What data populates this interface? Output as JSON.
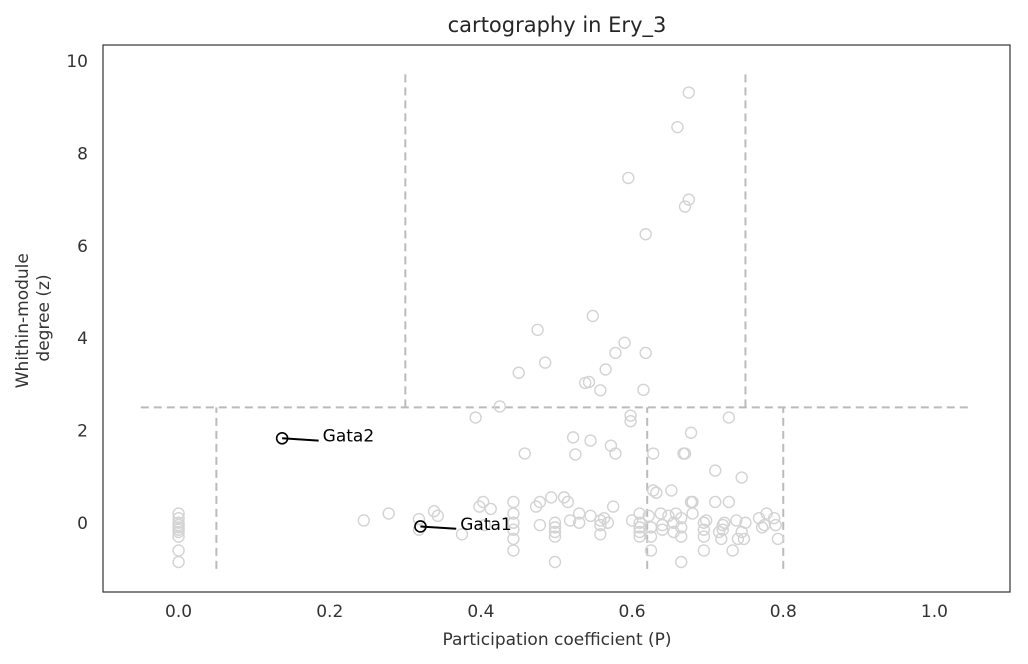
{
  "chart_data": {
    "type": "scatter",
    "title": "cartography in Ery_3",
    "xlabel": "Participation coefficient (P)",
    "ylabel_lines": [
      "Whithin-module",
      "degree (z)"
    ],
    "xlim": [
      -0.1,
      1.1
    ],
    "ylim": [
      -1.5,
      10.35
    ],
    "xticks": [
      0.0,
      0.2,
      0.4,
      0.6,
      0.8,
      1.0
    ],
    "xtick_labels": [
      "0.0",
      "0.2",
      "0.4",
      "0.6",
      "0.8",
      "1.0"
    ],
    "yticks": [
      0,
      2,
      4,
      6,
      8,
      10
    ],
    "ytick_labels": [
      "0",
      "2",
      "4",
      "6",
      "8",
      "10"
    ],
    "grid": false,
    "colors": {
      "points": "#d3d3d3",
      "highlight": "#000000",
      "boundaries": "#bbbbbb",
      "frame": "#333333"
    },
    "boundaries": [
      {
        "kind": "h",
        "y": 2.5,
        "x0": -0.05,
        "x1": 1.05
      },
      {
        "kind": "v",
        "x": 0.05,
        "y0": -1.0,
        "y1": 2.5
      },
      {
        "kind": "v",
        "x": 0.62,
        "y0": -1.0,
        "y1": 2.5
      },
      {
        "kind": "v",
        "x": 0.8,
        "y0": -1.0,
        "y1": 2.5
      },
      {
        "kind": "v",
        "x": 0.3,
        "y0": 2.5,
        "y1": 9.8
      },
      {
        "kind": "v",
        "x": 0.75,
        "y0": 2.5,
        "y1": 9.8
      }
    ],
    "points": [
      [
        0.0,
        0.2
      ],
      [
        0.0,
        0.1
      ],
      [
        0.0,
        0.0
      ],
      [
        0.0,
        -0.05
      ],
      [
        0.0,
        -0.1
      ],
      [
        0.0,
        -0.15
      ],
      [
        0.0,
        -0.2
      ],
      [
        0.0,
        -0.3
      ],
      [
        0.0,
        -0.6
      ],
      [
        0.0,
        -0.85
      ],
      [
        0.245,
        0.05
      ],
      [
        0.278,
        0.2
      ],
      [
        0.318,
        0.08
      ],
      [
        0.318,
        -0.15
      ],
      [
        0.338,
        0.25
      ],
      [
        0.343,
        0.15
      ],
      [
        0.375,
        -0.25
      ],
      [
        0.393,
        2.28
      ],
      [
        0.398,
        0.35
      ],
      [
        0.403,
        0.45
      ],
      [
        0.405,
        -0.05
      ],
      [
        0.413,
        0.3
      ],
      [
        0.425,
        2.52
      ],
      [
        0.443,
        0.45
      ],
      [
        0.443,
        0.2
      ],
      [
        0.443,
        0.0
      ],
      [
        0.443,
        -0.15
      ],
      [
        0.443,
        -0.35
      ],
      [
        0.443,
        -0.6
      ],
      [
        0.45,
        3.25
      ],
      [
        0.458,
        1.5
      ],
      [
        0.473,
        0.35
      ],
      [
        0.475,
        4.18
      ],
      [
        0.478,
        0.45
      ],
      [
        0.478,
        -0.05
      ],
      [
        0.485,
        3.47
      ],
      [
        0.493,
        0.55
      ],
      [
        0.498,
        0.0
      ],
      [
        0.498,
        -0.1
      ],
      [
        0.498,
        -0.2
      ],
      [
        0.498,
        -0.3
      ],
      [
        0.498,
        -0.85
      ],
      [
        0.51,
        0.55
      ],
      [
        0.515,
        0.45
      ],
      [
        0.518,
        0.05
      ],
      [
        0.522,
        1.85
      ],
      [
        0.525,
        1.48
      ],
      [
        0.53,
        0.2
      ],
      [
        0.53,
        0.0
      ],
      [
        0.538,
        3.03
      ],
      [
        0.543,
        3.05
      ],
      [
        0.545,
        0.15
      ],
      [
        0.545,
        1.78
      ],
      [
        0.548,
        4.48
      ],
      [
        0.558,
        2.87
      ],
      [
        0.558,
        0.05
      ],
      [
        0.558,
        -0.05
      ],
      [
        0.558,
        -0.25
      ],
      [
        0.563,
        0.1
      ],
      [
        0.565,
        3.32
      ],
      [
        0.568,
        0.0
      ],
      [
        0.572,
        1.67
      ],
      [
        0.575,
        0.35
      ],
      [
        0.578,
        1.5
      ],
      [
        0.578,
        3.68
      ],
      [
        0.59,
        3.9
      ],
      [
        0.595,
        7.47
      ],
      [
        0.598,
        2.2
      ],
      [
        0.598,
        2.32
      ],
      [
        0.6,
        0.05
      ],
      [
        0.61,
        0.2
      ],
      [
        0.61,
        0.0
      ],
      [
        0.61,
        -0.1
      ],
      [
        0.61,
        -0.2
      ],
      [
        0.61,
        -0.3
      ],
      [
        0.615,
        2.88
      ],
      [
        0.618,
        6.25
      ],
      [
        0.618,
        3.68
      ],
      [
        0.622,
        0.15
      ],
      [
        0.625,
        -0.1
      ],
      [
        0.625,
        -0.3
      ],
      [
        0.625,
        -0.6
      ],
      [
        0.628,
        1.5
      ],
      [
        0.628,
        0.7
      ],
      [
        0.632,
        0.65
      ],
      [
        0.638,
        0.2
      ],
      [
        0.64,
        -0.05
      ],
      [
        0.64,
        -0.15
      ],
      [
        0.648,
        0.15
      ],
      [
        0.652,
        0.7
      ],
      [
        0.655,
        0.0
      ],
      [
        0.655,
        -0.2
      ],
      [
        0.658,
        0.2
      ],
      [
        0.66,
        8.57
      ],
      [
        0.665,
        0.1
      ],
      [
        0.665,
        -0.1
      ],
      [
        0.665,
        -0.3
      ],
      [
        0.665,
        -0.85
      ],
      [
        0.668,
        1.5
      ],
      [
        0.67,
        6.85
      ],
      [
        0.67,
        1.5
      ],
      [
        0.675,
        9.32
      ],
      [
        0.675,
        7.0
      ],
      [
        0.678,
        0.45
      ],
      [
        0.678,
        1.95
      ],
      [
        0.68,
        0.45
      ],
      [
        0.68,
        0.2
      ],
      [
        0.695,
        0.0
      ],
      [
        0.695,
        -0.15
      ],
      [
        0.695,
        -0.3
      ],
      [
        0.695,
        -0.6
      ],
      [
        0.698,
        0.05
      ],
      [
        0.71,
        1.13
      ],
      [
        0.71,
        0.45
      ],
      [
        0.715,
        -0.2
      ],
      [
        0.718,
        -0.35
      ],
      [
        0.72,
        -0.05
      ],
      [
        0.72,
        -0.15
      ],
      [
        0.722,
        0.0
      ],
      [
        0.728,
        2.28
      ],
      [
        0.728,
        0.45
      ],
      [
        0.733,
        -0.6
      ],
      [
        0.738,
        0.05
      ],
      [
        0.74,
        -0.35
      ],
      [
        0.745,
        0.98
      ],
      [
        0.745,
        -0.2
      ],
      [
        0.748,
        -0.35
      ],
      [
        0.75,
        0.0
      ],
      [
        0.768,
        0.1
      ],
      [
        0.772,
        -0.1
      ],
      [
        0.775,
        -0.05
      ],
      [
        0.778,
        0.2
      ],
      [
        0.788,
        0.1
      ],
      [
        0.79,
        -0.05
      ],
      [
        0.793,
        -0.35
      ]
    ],
    "highlights": [
      {
        "name": "Gata2",
        "x": 0.137,
        "y": 1.83,
        "label_x": 0.188,
        "label_y": 1.78
      },
      {
        "name": "Gata1",
        "x": 0.32,
        "y": -0.08,
        "label_x": 0.37,
        "label_y": -0.13
      }
    ]
  }
}
